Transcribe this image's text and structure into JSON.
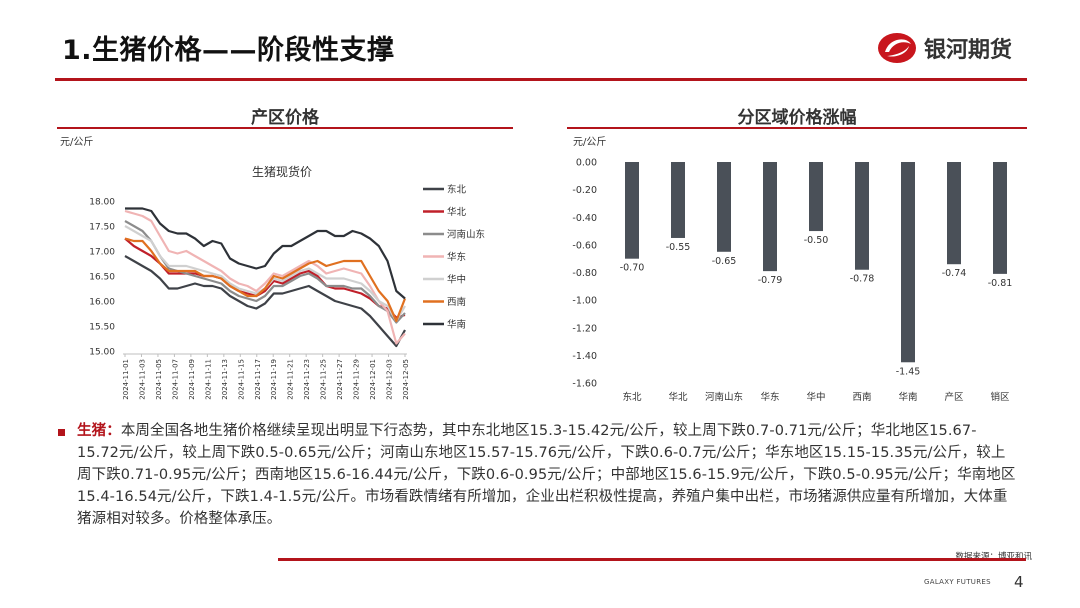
{
  "slide": {
    "title": "1.生猪价格——阶段性支撑"
  },
  "brand": {
    "name": "银河期货",
    "icon": "galaxy-futures-logo",
    "color": "#c8161d"
  },
  "left_panel": {
    "heading": "产区价格",
    "unit": "元/公斤"
  },
  "right_panel": {
    "heading": "分区域价格涨幅",
    "unit": "元/公斤"
  },
  "chart_data": [
    {
      "type": "line",
      "title": "生猪现货价",
      "ylim": [
        15.0,
        18.0
      ],
      "yticks": [
        "18.00",
        "17.50",
        "17.00",
        "16.50",
        "16.00",
        "15.50",
        "15.00"
      ],
      "xticks": [
        "2024-11-01",
        "2024-11-03",
        "2024-11-05",
        "2024-11-07",
        "2024-11-09",
        "2024-11-11",
        "2024-11-13",
        "2024-11-15",
        "2024-11-17",
        "2024-11-19",
        "2024-11-21",
        "2024-11-23",
        "2024-11-25",
        "2024-11-27",
        "2024-11-29",
        "2024-12-01",
        "2024-12-03",
        "2024-12-05"
      ],
      "grid": false,
      "legend_position": "right",
      "series": [
        {
          "name": "东北",
          "color": "#3f4248",
          "values": [
            16.9,
            16.8,
            16.7,
            16.6,
            16.45,
            16.25,
            16.25,
            16.3,
            16.35,
            16.3,
            16.3,
            16.25,
            16.1,
            16.0,
            15.9,
            15.85,
            15.95,
            16.15,
            16.15,
            16.2,
            16.25,
            16.3,
            16.2,
            16.1,
            16.0,
            15.95,
            15.9,
            15.85,
            15.7,
            15.5,
            15.3,
            15.1,
            15.42
          ]
        },
        {
          "name": "华北",
          "color": "#c0202a",
          "values": [
            17.25,
            17.1,
            17.0,
            16.9,
            16.75,
            16.55,
            16.55,
            16.55,
            16.55,
            16.5,
            16.5,
            16.45,
            16.3,
            16.2,
            16.15,
            16.1,
            16.2,
            16.4,
            16.35,
            16.45,
            16.55,
            16.6,
            16.5,
            16.3,
            16.25,
            16.25,
            16.2,
            16.15,
            16.05,
            15.9,
            15.85,
            15.67,
            15.72
          ]
        },
        {
          "name": "河南山东",
          "color": "#8c8c8c",
          "values": [
            17.6,
            17.5,
            17.4,
            17.2,
            16.9,
            16.65,
            16.6,
            16.55,
            16.5,
            16.45,
            16.4,
            16.35,
            16.2,
            16.1,
            16.05,
            16.0,
            16.1,
            16.3,
            16.3,
            16.4,
            16.5,
            16.55,
            16.45,
            16.3,
            16.3,
            16.3,
            16.25,
            16.25,
            16.1,
            15.9,
            15.8,
            15.57,
            15.76
          ]
        },
        {
          "name": "华东",
          "color": "#f0b4b4",
          "values": [
            17.8,
            17.75,
            17.7,
            17.6,
            17.3,
            17.0,
            16.95,
            17.0,
            16.9,
            16.8,
            16.7,
            16.6,
            16.45,
            16.35,
            16.3,
            16.2,
            16.35,
            16.55,
            16.5,
            16.6,
            16.7,
            16.8,
            16.7,
            16.55,
            16.6,
            16.65,
            16.6,
            16.55,
            16.3,
            16.0,
            15.8,
            15.15,
            15.35
          ]
        },
        {
          "name": "华中",
          "color": "#d0d0d0",
          "values": [
            17.5,
            17.4,
            17.3,
            17.2,
            16.9,
            16.7,
            16.7,
            16.7,
            16.65,
            16.6,
            16.55,
            16.5,
            16.35,
            16.25,
            16.2,
            16.15,
            16.25,
            16.45,
            16.4,
            16.5,
            16.6,
            16.65,
            16.55,
            16.45,
            16.45,
            16.45,
            16.4,
            16.35,
            16.2,
            16.0,
            15.9,
            15.6,
            15.9
          ]
        },
        {
          "name": "西南",
          "color": "#e07020",
          "values": [
            17.25,
            17.2,
            17.2,
            17.0,
            16.75,
            16.6,
            16.6,
            16.6,
            16.6,
            16.5,
            16.5,
            16.45,
            16.3,
            16.2,
            16.1,
            16.1,
            16.25,
            16.5,
            16.45,
            16.55,
            16.65,
            16.75,
            16.8,
            16.7,
            16.75,
            16.8,
            16.8,
            16.8,
            16.5,
            16.2,
            16.0,
            15.6,
            16.05
          ]
        },
        {
          "name": "华南",
          "color": "#2e3238",
          "values": [
            17.85,
            17.85,
            17.85,
            17.8,
            17.55,
            17.4,
            17.35,
            17.35,
            17.25,
            17.1,
            17.2,
            17.15,
            16.85,
            16.75,
            16.7,
            16.65,
            16.7,
            16.95,
            17.1,
            17.1,
            17.2,
            17.3,
            17.4,
            17.4,
            17.3,
            17.3,
            17.4,
            17.35,
            17.25,
            17.1,
            16.8,
            16.2,
            16.05
          ]
        }
      ]
    },
    {
      "type": "bar",
      "categories": [
        "东北",
        "华北",
        "河南山东",
        "华东",
        "华中",
        "西南",
        "华南",
        "产区",
        "销区"
      ],
      "values": [
        -0.7,
        -0.55,
        -0.65,
        -0.79,
        -0.5,
        -0.78,
        -1.45,
        -0.74,
        -0.81
      ],
      "labels": [
        "-0.70",
        "-0.55",
        "-0.65",
        "-0.79",
        "-0.50",
        "-0.78",
        "-1.45",
        "-0.74",
        "-0.81"
      ],
      "ylim": [
        -1.6,
        0.0
      ],
      "yticks": [
        "0.00",
        "-0.20",
        "-0.40",
        "-0.60",
        "-0.80",
        "-1.00",
        "-1.20",
        "-1.40",
        "-1.60"
      ],
      "grid": false,
      "bar_color": "#4a5058"
    }
  ],
  "commentary": {
    "label": "生猪：",
    "text": "本周全国各地生猪价格继续呈现出明显下行态势，其中东北地区15.3-15.42元/公斤，较上周下跌0.7-0.71元/公斤；华北地区15.67-15.72元/公斤，较上周下跌0.5-0.65元/公斤；河南山东地区15.57-15.76元/公斤，下跌0.6-0.7元/公斤；华东地区15.15-15.35元/公斤，较上周下跌0.71-0.95元/公斤；西南地区15.6-16.44元/公斤，下跌0.6-0.95元/公斤；中部地区15.6-15.9元/公斤，下跌0.5-0.95元/公斤；华南地区15.4-16.54元/公斤，下跌1.4-1.5元/公斤。市场看跌情绪有所增加，企业出栏积极性提高，养殖户集中出栏，市场猪源供应量有所增加，大体重猪源相对较多。价格整体承压。"
  },
  "footer": {
    "source": "数据来源：博亚和讯",
    "brand_en": "GALAXY FUTURES",
    "page": "4"
  }
}
